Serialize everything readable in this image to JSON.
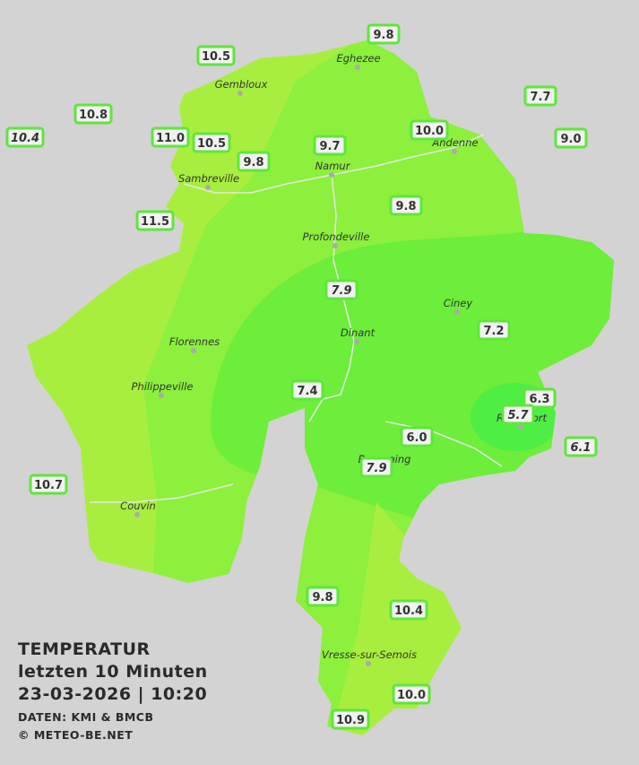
{
  "title": {
    "lines": [
      "TEMPERATUR",
      "letzten 10 Minuten",
      "23-03-2026  |  10:20"
    ]
  },
  "credits": [
    "DATEN: KMI & BMCB",
    "© METEO-BE.NET"
  ],
  "towns": [
    {
      "name": "Eghezee"
    },
    {
      "name": "Gembloux"
    },
    {
      "name": "Andenne"
    },
    {
      "name": "Namur"
    },
    {
      "name": "Sambreville"
    },
    {
      "name": "Profondeville"
    },
    {
      "name": "Ciney"
    },
    {
      "name": "Dinant"
    },
    {
      "name": "Florennes"
    },
    {
      "name": "Philippeville"
    },
    {
      "name": "Rochefort"
    },
    {
      "name": "Beauraing"
    },
    {
      "name": "Couvin"
    },
    {
      "name": "Vresse-sur-Semois"
    }
  ],
  "stations": [
    {
      "label": "9.8",
      "italic": false
    },
    {
      "label": "10.5",
      "italic": false
    },
    {
      "label": "7.7",
      "italic": false
    },
    {
      "label": "10.8",
      "italic": false
    },
    {
      "label": "10.4",
      "italic": true
    },
    {
      "label": "11.0",
      "italic": false
    },
    {
      "label": "10.5",
      "italic": false
    },
    {
      "label": "10.0",
      "italic": false
    },
    {
      "label": "9.0",
      "italic": false
    },
    {
      "label": "9.7",
      "italic": false
    },
    {
      "label": "9.8",
      "italic": false
    },
    {
      "label": "9.8",
      "italic": false
    },
    {
      "label": "11.5",
      "italic": false
    },
    {
      "label": "7.9",
      "italic": true
    },
    {
      "label": "7.2",
      "italic": false
    },
    {
      "label": "7.4",
      "italic": false
    },
    {
      "label": "6.3",
      "italic": false
    },
    {
      "label": "5.7",
      "italic": true
    },
    {
      "label": "6.0",
      "italic": false
    },
    {
      "label": "6.1",
      "italic": true
    },
    {
      "label": "7.9",
      "italic": true
    },
    {
      "label": "10.7",
      "italic": false
    },
    {
      "label": "9.8",
      "italic": false
    },
    {
      "label": "10.4",
      "italic": false
    },
    {
      "label": "10.0",
      "italic": false
    },
    {
      "label": "10.9",
      "italic": false
    }
  ]
}
